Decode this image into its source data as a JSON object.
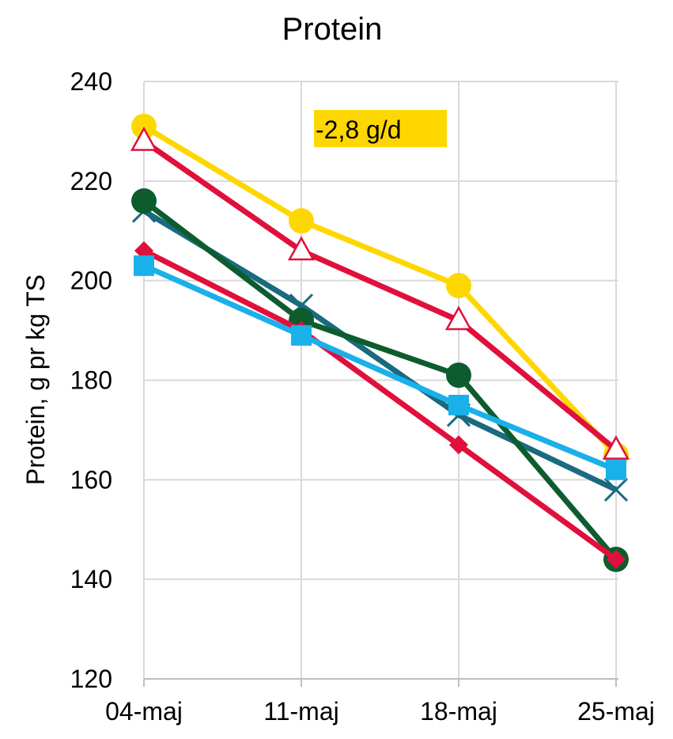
{
  "chart_data": {
    "type": "line",
    "title": "Protein",
    "ylabel": "Protein, g pr kg TS",
    "xlabel": "",
    "categories": [
      "04-maj",
      "11-maj",
      "18-maj",
      "25-maj"
    ],
    "ylim": [
      120,
      240
    ],
    "yticks": [
      120,
      140,
      160,
      180,
      200,
      220,
      240
    ],
    "grid": true,
    "annotation": {
      "text": "-2,8 g/d",
      "background": "#ffd700"
    },
    "series": [
      {
        "values": [
          231,
          212,
          199,
          165
        ],
        "color": "#ffd700",
        "marker": "circle"
      },
      {
        "values": [
          228,
          206,
          192,
          166
        ],
        "color": "#e0103c",
        "marker": "triangle-open"
      },
      {
        "values": [
          214,
          195,
          173,
          158
        ],
        "color": "#1a6a80",
        "marker": "x"
      },
      {
        "values": [
          216,
          192,
          181,
          144
        ],
        "color": "#0d5c2e",
        "marker": "circle"
      },
      {
        "values": [
          206,
          190,
          167,
          144
        ],
        "color": "#e0103c",
        "marker": "diamond"
      },
      {
        "values": [
          203,
          189,
          175,
          162
        ],
        "color": "#1ab0ea",
        "marker": "square"
      }
    ]
  }
}
